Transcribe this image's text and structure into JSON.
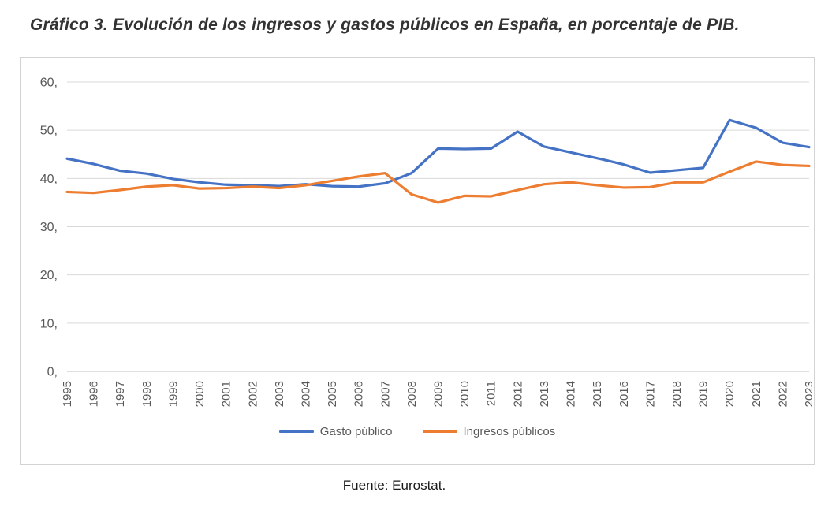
{
  "page": {
    "title": "Gráfico 3. Evolución de los ingresos y gastos públicos en España, en porcentaje de PIB.",
    "source": "Fuente: Eurostat."
  },
  "chart_data": {
    "type": "line",
    "title": "Gráfico 3. Evolución de los ingresos y gastos públicos en España, en porcentaje de PIB.",
    "xlabel": "",
    "ylabel": "",
    "categories": [
      "1995",
      "1996",
      "1997",
      "1998",
      "1999",
      "2000",
      "2001",
      "2002",
      "2003",
      "2004",
      "2005",
      "2006",
      "2007",
      "2008",
      "2009",
      "2010",
      "2011",
      "2012",
      "2013",
      "2014",
      "2015",
      "2016",
      "2017",
      "2018",
      "2019",
      "2020",
      "2021",
      "2022",
      "2023"
    ],
    "series": [
      {
        "name": "Gasto público",
        "color": "#4472C4",
        "values": [
          44.1,
          43.0,
          41.6,
          41.0,
          39.9,
          39.2,
          38.7,
          38.6,
          38.4,
          38.8,
          38.4,
          38.3,
          39.0,
          41.1,
          46.2,
          46.1,
          46.2,
          49.7,
          46.6,
          45.4,
          44.2,
          42.9,
          41.2,
          41.7,
          42.2,
          52.1,
          50.5,
          47.4,
          46.5
        ]
      },
      {
        "name": "Ingresos públicos",
        "color": "#ED7D31",
        "values": [
          37.2,
          37.0,
          37.6,
          38.3,
          38.6,
          37.9,
          38.0,
          38.3,
          38.0,
          38.6,
          39.5,
          40.4,
          41.1,
          36.7,
          35.0,
          36.4,
          36.3,
          37.6,
          38.8,
          39.2,
          38.6,
          38.1,
          38.2,
          39.2,
          39.2,
          41.4,
          43.5,
          42.8,
          42.6
        ]
      }
    ],
    "ylim": [
      0,
      60
    ],
    "ytick_step": 10,
    "ytick_labels": [
      "0,",
      "10,",
      "20,",
      "30,",
      "40,",
      "50,",
      "60,"
    ],
    "grid": true,
    "legend_position": "bottom",
    "gridline_color": "#d9d9d9",
    "axis_text_color": "#595959"
  }
}
